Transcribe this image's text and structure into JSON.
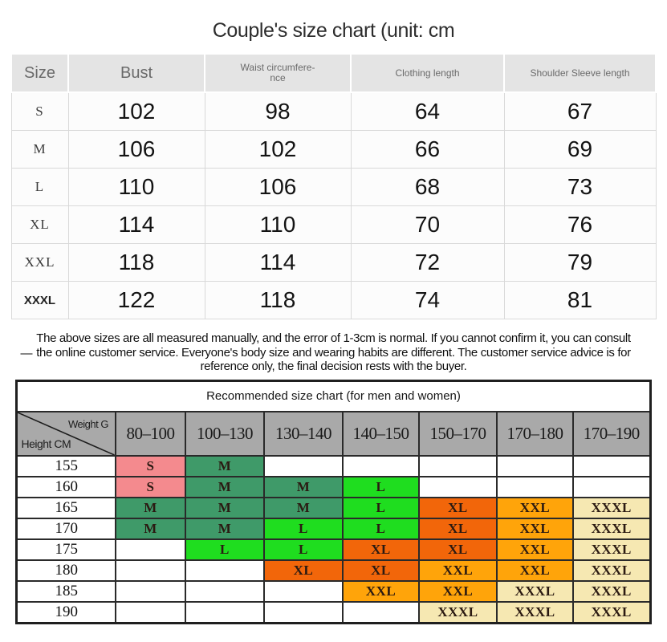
{
  "title": "Couple's size chart (unit: cm",
  "note": {
    "dash": "—",
    "text": "The above sizes are all measured manually, and the error of 1-3cm is normal. If you cannot confirm it, you can consult the online customer service. Everyone's body size and wearing habits are different. The customer service advice is for reference only, the final decision rests with the buyer."
  },
  "chart_data": [
    {
      "type": "table",
      "title": "Couple's size chart (unit: cm",
      "columns": [
        "Size",
        "Bust",
        "Waist circumfere-\nnce",
        "Clothing length",
        "Shoulder Sleeve length"
      ],
      "rows": [
        [
          "S",
          "102",
          "98",
          "64",
          "67"
        ],
        [
          "M",
          "106",
          "102",
          "66",
          "69"
        ],
        [
          "L",
          "110",
          "106",
          "68",
          "73"
        ],
        [
          "XL",
          "114",
          "110",
          "70",
          "76"
        ],
        [
          "XXL",
          "118",
          "114",
          "72",
          "79"
        ],
        [
          "XXXL",
          "122",
          "118",
          "74",
          "81"
        ]
      ]
    },
    {
      "type": "table",
      "title": "Recommended size chart (for men and women)",
      "corner_top": "Weight G",
      "corner_bottom": "Height CM",
      "columns": [
        "80–100",
        "100–130",
        "130–140",
        "140–150",
        "150–170",
        "170–180",
        "170–190"
      ],
      "rows": [
        [
          "155",
          "S",
          "M",
          "",
          "",
          "",
          "",
          ""
        ],
        [
          "160",
          "S",
          "M",
          "M",
          "L",
          "",
          "",
          ""
        ],
        [
          "165",
          "M",
          "M",
          "M",
          "L",
          "XL",
          "XXL",
          "XXXL"
        ],
        [
          "170",
          "M",
          "M",
          "L",
          "L",
          "XL",
          "XXL",
          "XXXL"
        ],
        [
          "175",
          "",
          "L",
          "L",
          "XL",
          "XL",
          "XXL",
          "XXXL"
        ],
        [
          "180",
          "",
          "",
          "XL",
          "XL",
          "XXL",
          "XXL",
          "XXXL"
        ],
        [
          "185",
          "",
          "",
          "",
          "XXL",
          "XXL",
          "XXXL",
          "XXXL"
        ],
        [
          "190",
          "",
          "",
          "",
          "",
          "XXXL",
          "XXXL",
          "XXXL"
        ]
      ],
      "size_colors": {
        "S": "#f48a8e",
        "M": "#3f9a69",
        "L": "#1fdd1f",
        "XL": "#f2660a",
        "XXL": "#ffa40a",
        "XXXL": "#f6e8b2"
      }
    }
  ]
}
